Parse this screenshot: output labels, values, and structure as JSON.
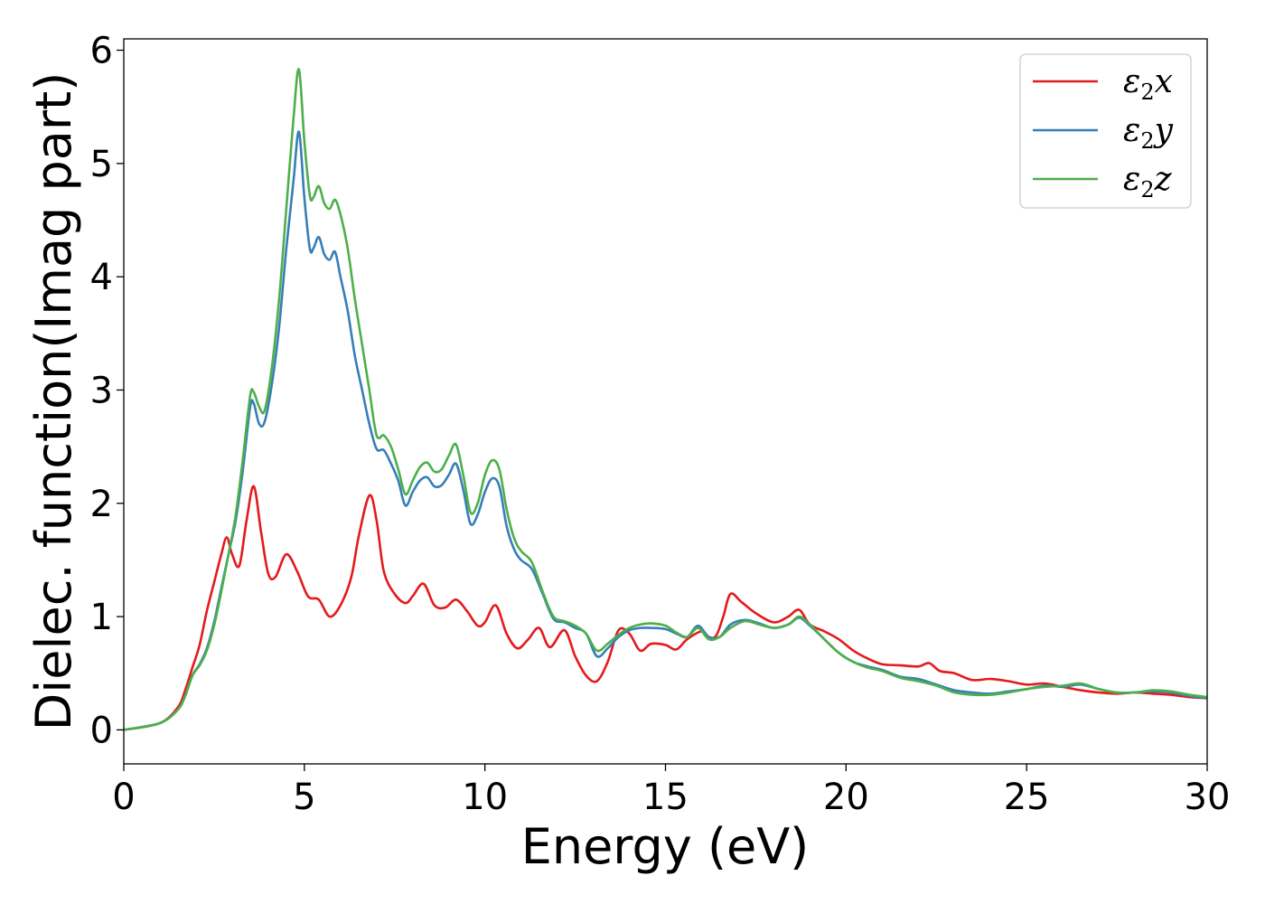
{
  "chart_data": {
    "type": "line",
    "xlabel": "Energy (eV)",
    "ylabel": "Dielec. function(Imag part)",
    "xlim": [
      0,
      30
    ],
    "ylim": [
      -0.3,
      6.1
    ],
    "xticks": [
      0,
      5,
      10,
      15,
      20,
      25,
      30
    ],
    "yticks": [
      0,
      1,
      2,
      3,
      4,
      5,
      6
    ],
    "grid": false,
    "legend_position": "top-right",
    "series": [
      {
        "name": "ε2x",
        "name_base": "ε",
        "name_sub": "2",
        "name_suffix": "x",
        "color": "#e41a1c",
        "x": [
          0,
          1.0,
          1.5,
          1.7,
          1.9,
          2.1,
          2.3,
          2.5,
          2.7,
          2.85,
          3.0,
          3.2,
          3.4,
          3.6,
          3.8,
          4.0,
          4.2,
          4.5,
          4.8,
          5.1,
          5.4,
          5.7,
          6.0,
          6.3,
          6.5,
          6.8,
          7.0,
          7.2,
          7.5,
          7.8,
          8.0,
          8.3,
          8.6,
          8.9,
          9.2,
          9.5,
          9.8,
          10.0,
          10.3,
          10.6,
          10.9,
          11.2,
          11.5,
          11.8,
          12.2,
          12.5,
          12.8,
          13.1,
          13.4,
          13.7,
          14.0,
          14.3,
          14.6,
          15.0,
          15.3,
          15.6,
          16.0,
          16.2,
          16.4,
          16.6,
          16.8,
          17.1,
          17.5,
          18.0,
          18.4,
          18.7,
          19.0,
          19.4,
          19.8,
          20.2,
          20.6,
          21.0,
          21.5,
          22.0,
          22.3,
          22.6,
          23.0,
          23.5,
          24.0,
          24.5,
          25.0,
          25.5,
          26.0,
          26.5,
          27.0,
          27.5,
          28.0,
          28.5,
          29.0,
          29.5,
          30.0
        ],
        "values": [
          0.0,
          0.06,
          0.2,
          0.35,
          0.55,
          0.75,
          1.05,
          1.3,
          1.55,
          1.7,
          1.55,
          1.45,
          1.85,
          2.15,
          1.75,
          1.38,
          1.35,
          1.55,
          1.4,
          1.18,
          1.15,
          1.0,
          1.1,
          1.35,
          1.7,
          2.07,
          1.85,
          1.4,
          1.2,
          1.12,
          1.18,
          1.29,
          1.1,
          1.08,
          1.15,
          1.05,
          0.92,
          0.95,
          1.1,
          0.85,
          0.72,
          0.8,
          0.9,
          0.73,
          0.88,
          0.65,
          0.48,
          0.43,
          0.6,
          0.88,
          0.85,
          0.7,
          0.76,
          0.75,
          0.71,
          0.8,
          0.87,
          0.82,
          0.83,
          1.0,
          1.2,
          1.13,
          1.03,
          0.95,
          1.0,
          1.06,
          0.93,
          0.87,
          0.8,
          0.7,
          0.63,
          0.58,
          0.57,
          0.56,
          0.59,
          0.52,
          0.5,
          0.44,
          0.45,
          0.43,
          0.4,
          0.41,
          0.38,
          0.35,
          0.33,
          0.32,
          0.33,
          0.32,
          0.31,
          0.29,
          0.28
        ]
      },
      {
        "name": "ε2y",
        "name_base": "ε",
        "name_sub": "2",
        "name_suffix": "y",
        "color": "#377eb8",
        "x": [
          0,
          1.0,
          1.5,
          1.7,
          1.9,
          2.1,
          2.3,
          2.5,
          2.7,
          2.9,
          3.1,
          3.3,
          3.5,
          3.6,
          3.75,
          3.9,
          4.1,
          4.3,
          4.5,
          4.7,
          4.85,
          5.0,
          5.15,
          5.25,
          5.4,
          5.55,
          5.7,
          5.85,
          6.0,
          6.2,
          6.4,
          6.6,
          6.8,
          7.0,
          7.2,
          7.4,
          7.6,
          7.8,
          8.0,
          8.2,
          8.4,
          8.6,
          8.8,
          9.0,
          9.2,
          9.4,
          9.6,
          9.8,
          10.0,
          10.2,
          10.4,
          10.6,
          10.8,
          11.0,
          11.3,
          11.6,
          11.9,
          12.2,
          12.5,
          12.8,
          13.1,
          13.4,
          13.7,
          14.0,
          14.3,
          14.6,
          15.0,
          15.3,
          15.6,
          15.9,
          16.2,
          16.5,
          16.8,
          17.2,
          17.6,
          18.0,
          18.4,
          18.7,
          19.0,
          19.4,
          19.8,
          20.2,
          20.6,
          21.0,
          21.5,
          22.0,
          22.5,
          23.0,
          23.5,
          24.0,
          24.5,
          25.0,
          25.5,
          26.0,
          26.5,
          27.0,
          27.5,
          28.0,
          28.5,
          29.0,
          29.5,
          30.0
        ],
        "values": [
          0.0,
          0.06,
          0.18,
          0.3,
          0.48,
          0.58,
          0.72,
          0.95,
          1.25,
          1.55,
          1.85,
          2.3,
          2.85,
          2.88,
          2.7,
          2.72,
          3.05,
          3.55,
          4.25,
          4.85,
          5.28,
          4.7,
          4.25,
          4.25,
          4.35,
          4.2,
          4.15,
          4.22,
          4.0,
          3.7,
          3.3,
          3.0,
          2.7,
          2.48,
          2.47,
          2.35,
          2.2,
          1.98,
          2.1,
          2.2,
          2.23,
          2.15,
          2.16,
          2.25,
          2.35,
          2.12,
          1.82,
          1.9,
          2.1,
          2.22,
          2.15,
          1.8,
          1.6,
          1.5,
          1.42,
          1.2,
          0.98,
          0.95,
          0.9,
          0.85,
          0.65,
          0.72,
          0.82,
          0.88,
          0.9,
          0.9,
          0.89,
          0.85,
          0.82,
          0.92,
          0.82,
          0.82,
          0.93,
          0.97,
          0.94,
          0.9,
          0.93,
          0.99,
          0.92,
          0.8,
          0.68,
          0.6,
          0.56,
          0.53,
          0.47,
          0.45,
          0.4,
          0.35,
          0.33,
          0.32,
          0.34,
          0.36,
          0.39,
          0.38,
          0.4,
          0.36,
          0.33,
          0.33,
          0.34,
          0.33,
          0.3,
          0.28
        ]
      },
      {
        "name": "ε2z",
        "name_base": "ε",
        "name_sub": "2",
        "name_suffix": "z",
        "color": "#4daf4a",
        "x": [
          0,
          1.0,
          1.5,
          1.7,
          1.9,
          2.1,
          2.3,
          2.5,
          2.7,
          2.9,
          3.1,
          3.3,
          3.5,
          3.6,
          3.75,
          3.9,
          4.1,
          4.3,
          4.5,
          4.7,
          4.85,
          5.0,
          5.15,
          5.25,
          5.4,
          5.55,
          5.7,
          5.85,
          6.0,
          6.2,
          6.4,
          6.6,
          6.8,
          7.0,
          7.2,
          7.4,
          7.6,
          7.8,
          8.0,
          8.2,
          8.4,
          8.6,
          8.8,
          9.0,
          9.2,
          9.4,
          9.6,
          9.8,
          10.0,
          10.2,
          10.4,
          10.6,
          10.8,
          11.0,
          11.3,
          11.6,
          11.9,
          12.2,
          12.5,
          12.8,
          13.1,
          13.4,
          13.7,
          14.0,
          14.3,
          14.6,
          15.0,
          15.3,
          15.6,
          15.9,
          16.2,
          16.5,
          16.8,
          17.2,
          17.6,
          18.0,
          18.4,
          18.7,
          19.0,
          19.4,
          19.8,
          20.2,
          20.6,
          21.0,
          21.5,
          22.0,
          22.5,
          23.0,
          23.5,
          24.0,
          24.5,
          25.0,
          25.5,
          26.0,
          26.5,
          27.0,
          27.5,
          28.0,
          28.5,
          29.0,
          29.5,
          30.0
        ],
        "values": [
          0.0,
          0.06,
          0.18,
          0.3,
          0.48,
          0.57,
          0.7,
          0.92,
          1.22,
          1.55,
          1.9,
          2.4,
          2.95,
          2.98,
          2.85,
          2.82,
          3.2,
          3.8,
          4.6,
          5.4,
          5.83,
          5.2,
          4.72,
          4.7,
          4.8,
          4.65,
          4.6,
          4.68,
          4.55,
          4.25,
          3.8,
          3.4,
          3.0,
          2.6,
          2.6,
          2.5,
          2.3,
          2.08,
          2.2,
          2.32,
          2.36,
          2.28,
          2.3,
          2.42,
          2.52,
          2.25,
          1.92,
          2.0,
          2.25,
          2.38,
          2.3,
          1.95,
          1.7,
          1.58,
          1.48,
          1.22,
          1.0,
          0.96,
          0.92,
          0.85,
          0.7,
          0.76,
          0.84,
          0.9,
          0.93,
          0.94,
          0.92,
          0.86,
          0.82,
          0.9,
          0.8,
          0.82,
          0.9,
          0.96,
          0.93,
          0.9,
          0.93,
          1.0,
          0.93,
          0.8,
          0.68,
          0.6,
          0.55,
          0.52,
          0.46,
          0.43,
          0.39,
          0.33,
          0.31,
          0.31,
          0.33,
          0.36,
          0.38,
          0.39,
          0.41,
          0.36,
          0.33,
          0.33,
          0.35,
          0.34,
          0.31,
          0.29
        ]
      }
    ]
  }
}
